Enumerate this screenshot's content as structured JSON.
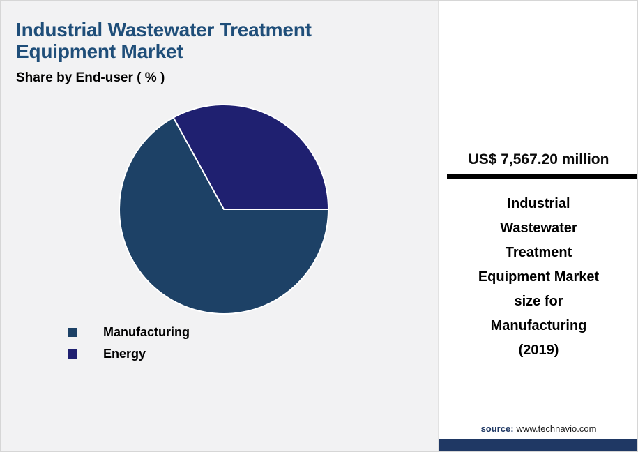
{
  "header": {
    "title_line1": "Industrial Wastewater Treatment",
    "title_line2": "Equipment Market",
    "subtitle": "Share by End-user ( % )",
    "title_color": "#1f4e79"
  },
  "chart_data": {
    "type": "pie",
    "title": "Share by End-user ( % )",
    "unit": "%",
    "legend_position": "bottom-left",
    "start_angle_deg": 0,
    "segments": [
      {
        "name": "Manufacturing",
        "value": 67,
        "color": "#1d4166"
      },
      {
        "name": "Energy",
        "value": 33,
        "color": "#1f2070"
      }
    ]
  },
  "panel": {
    "value_text": "US$ 7,567.20 million",
    "caption": "Industrial Wastewater Treatment Equipment Market size for Manufacturing (2019)",
    "source_label": "source:",
    "source_url": "www.technavio.com",
    "footer_color": "#1f3864"
  }
}
